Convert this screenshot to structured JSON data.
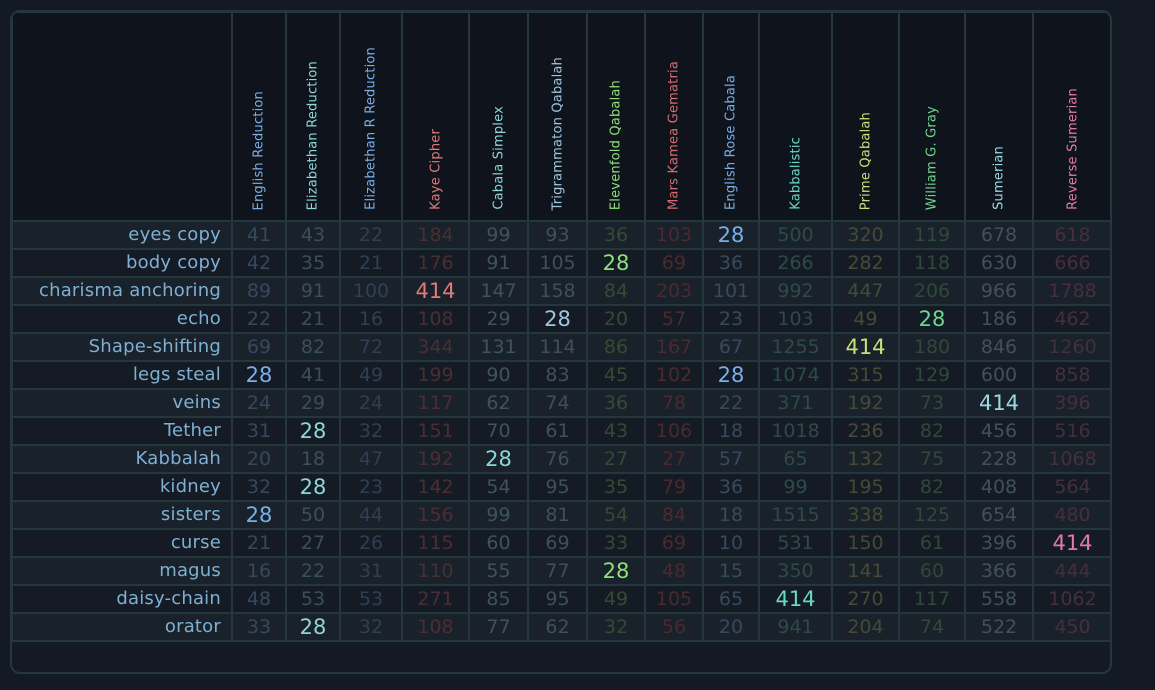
{
  "columns": [
    {
      "name": "English Reduction",
      "color": "#7aaee6",
      "dim": "#37485d"
    },
    {
      "name": "Elizabethan Reduction",
      "color": "#8fd6d6",
      "dim": "#3b5054"
    },
    {
      "name": "Elizabethan R Reduction",
      "color": "#7aaee6",
      "dim": "#303f52"
    },
    {
      "name": "Kaye Cipher",
      "color": "#e07a78",
      "dim": "#4a2e33"
    },
    {
      "name": "Cabala Simplex",
      "color": "#8fd6d6",
      "dim": "#3e5456"
    },
    {
      "name": "Trigrammaton Qabalah",
      "color": "#9ec6dd",
      "dim": "#3f5059"
    },
    {
      "name": "Elevenfold Qabalah",
      "color": "#8fe07a",
      "dim": "#354a34"
    },
    {
      "name": "Mars Kamea Gematria",
      "color": "#d86b6b",
      "dim": "#4a2a2e"
    },
    {
      "name": "English Rose Cabala",
      "color": "#7aaee6",
      "dim": "#374a5d"
    },
    {
      "name": "Kabbalistic",
      "color": "#68d9c4",
      "dim": "#2e4a48"
    },
    {
      "name": "Prime Qabalah",
      "color": "#c9e07a",
      "dim": "#474a34"
    },
    {
      "name": "William G. Gray",
      "color": "#6fd48f",
      "dim": "#30483a"
    },
    {
      "name": "Sumerian",
      "color": "#9bd9e0",
      "dim": "#425159"
    },
    {
      "name": "Reverse Sumerian",
      "color": "#e07ab0",
      "dim": "#452f3c"
    }
  ],
  "rows": [
    {
      "label": "eyes copy",
      "values": [
        "41",
        "43",
        "22",
        "184",
        "99",
        "93",
        "36",
        "103",
        "28",
        "500",
        "320",
        "119",
        "678",
        "618"
      ]
    },
    {
      "label": "body copy",
      "values": [
        "42",
        "35",
        "21",
        "176",
        "91",
        "105",
        "28",
        "69",
        "36",
        "266",
        "282",
        "118",
        "630",
        "666"
      ]
    },
    {
      "label": "charisma anchoring",
      "values": [
        "89",
        "91",
        "100",
        "414",
        "147",
        "158",
        "84",
        "203",
        "101",
        "992",
        "447",
        "206",
        "966",
        "1788"
      ]
    },
    {
      "label": "echo",
      "values": [
        "22",
        "21",
        "16",
        "108",
        "29",
        "28",
        "20",
        "57",
        "23",
        "103",
        "49",
        "28",
        "186",
        "462"
      ]
    },
    {
      "label": "Shape-shifting",
      "values": [
        "69",
        "82",
        "72",
        "344",
        "131",
        "114",
        "86",
        "167",
        "67",
        "1255",
        "414",
        "180",
        "846",
        "1260"
      ]
    },
    {
      "label": "legs steal",
      "values": [
        "28",
        "41",
        "49",
        "199",
        "90",
        "83",
        "45",
        "102",
        "28",
        "1074",
        "315",
        "129",
        "600",
        "858"
      ]
    },
    {
      "label": "veins",
      "values": [
        "24",
        "29",
        "24",
        "117",
        "62",
        "74",
        "36",
        "78",
        "22",
        "371",
        "192",
        "73",
        "414",
        "396"
      ]
    },
    {
      "label": "Tether",
      "values": [
        "31",
        "28",
        "32",
        "151",
        "70",
        "61",
        "43",
        "106",
        "18",
        "1018",
        "236",
        "82",
        "456",
        "516"
      ]
    },
    {
      "label": "Kabbalah",
      "values": [
        "20",
        "18",
        "47",
        "192",
        "28",
        "76",
        "27",
        "27",
        "57",
        "65",
        "132",
        "75",
        "228",
        "1068"
      ]
    },
    {
      "label": "kidney",
      "values": [
        "32",
        "28",
        "23",
        "142",
        "54",
        "95",
        "35",
        "79",
        "36",
        "99",
        "195",
        "82",
        "408",
        "564"
      ]
    },
    {
      "label": "sisters",
      "values": [
        "28",
        "50",
        "44",
        "156",
        "99",
        "81",
        "54",
        "84",
        "18",
        "1515",
        "338",
        "125",
        "654",
        "480"
      ]
    },
    {
      "label": "curse",
      "values": [
        "21",
        "27",
        "26",
        "115",
        "60",
        "69",
        "33",
        "69",
        "10",
        "531",
        "150",
        "61",
        "396",
        "414"
      ]
    },
    {
      "label": "magus",
      "values": [
        "16",
        "22",
        "31",
        "110",
        "55",
        "77",
        "28",
        "48",
        "15",
        "350",
        "141",
        "60",
        "366",
        "444"
      ]
    },
    {
      "label": "daisy-chain",
      "values": [
        "48",
        "53",
        "53",
        "271",
        "85",
        "95",
        "49",
        "105",
        "65",
        "414",
        "270",
        "117",
        "558",
        "1062"
      ]
    },
    {
      "label": "orator",
      "values": [
        "33",
        "28",
        "32",
        "108",
        "77",
        "62",
        "32",
        "56",
        "20",
        "941",
        "204",
        "74",
        "522",
        "450"
      ]
    }
  ],
  "highlight_values": [
    "28",
    "414"
  ]
}
